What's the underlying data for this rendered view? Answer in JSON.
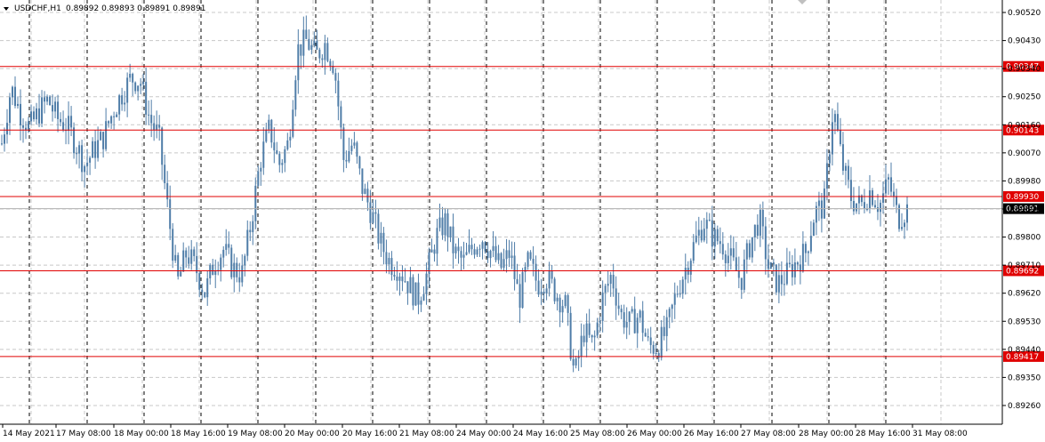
{
  "header": {
    "symbol": "USDCHF,H1",
    "ohlc": "0.89892 0.89893 0.89891 0.89891"
  },
  "colors": {
    "candle": "#4f7da8",
    "level_line": "#e00000",
    "level_label_bg": "#e00000",
    "current_label_bg": "#000000",
    "grid": "#c8c8c8",
    "axis": "#000000"
  },
  "chart_data": {
    "type": "candlestick",
    "title": "",
    "symbol": "USDCHF",
    "timeframe": "H1",
    "ylim": [
      0.892,
      0.9056
    ],
    "y_ticks": [
      "0.90520",
      "0.90430",
      "0.90340",
      "0.90250",
      "0.90160",
      "0.90070",
      "0.89980",
      "0.89890",
      "0.89800",
      "0.89710",
      "0.89620",
      "0.89530",
      "0.89440",
      "0.89350",
      "0.89260"
    ],
    "x_ticks": [
      "14 May 2021",
      "17 May 08:00",
      "18 May 00:00",
      "18 May 16:00",
      "19 May 08:00",
      "20 May 00:00",
      "20 May 16:00",
      "21 May 08:00",
      "24 May 00:00",
      "24 May 16:00",
      "25 May 08:00",
      "26 May 00:00",
      "26 May 16:00",
      "27 May 08:00",
      "28 May 00:00",
      "28 May 16:00",
      "31 May 08:00"
    ],
    "levels": [
      {
        "label": "0.90347",
        "value": 0.90347
      },
      {
        "label": "0.90143",
        "value": 0.90143
      },
      {
        "label": "0.89930",
        "value": 0.8993
      },
      {
        "label": "0.89692",
        "value": 0.89692
      },
      {
        "label": "0.89417",
        "value": 0.89417
      }
    ],
    "current_price": {
      "label": "0.89891",
      "value": 0.89891
    },
    "close_path": [
      0.901,
      0.9028,
      0.902,
      0.9015,
      0.902,
      0.9024,
      0.9018,
      0.9016,
      0.901,
      0.9003,
      0.9008,
      0.9012,
      0.902,
      0.9026,
      0.9031,
      0.903,
      0.9018,
      0.9012,
      0.8988,
      0.8965,
      0.8975,
      0.897,
      0.8962,
      0.8972,
      0.8976,
      0.897,
      0.8968,
      0.8985,
      0.9005,
      0.9015,
      0.9003,
      0.901,
      0.904,
      0.9043,
      0.9038,
      0.9042,
      0.9035,
      0.9005,
      0.901,
      0.8996,
      0.8988,
      0.8978,
      0.8972,
      0.897,
      0.8965,
      0.896,
      0.8968,
      0.898,
      0.8985,
      0.8975,
      0.8972,
      0.8977,
      0.898,
      0.8975,
      0.897,
      0.8975,
      0.896,
      0.8972,
      0.8965,
      0.8967,
      0.8962,
      0.8958,
      0.8935,
      0.895,
      0.8945,
      0.896,
      0.8968,
      0.8955,
      0.8952,
      0.8955,
      0.8945,
      0.8945,
      0.895,
      0.8962,
      0.897,
      0.8978,
      0.8985,
      0.898,
      0.8978,
      0.8972,
      0.8966,
      0.8978,
      0.8986,
      0.897,
      0.8965,
      0.8968,
      0.8972,
      0.8975,
      0.8988,
      0.899,
      0.9022,
      0.9003,
      0.8992,
      0.899,
      0.8995,
      0.899,
      0.8998,
      0.8986,
      0.8989
    ]
  }
}
